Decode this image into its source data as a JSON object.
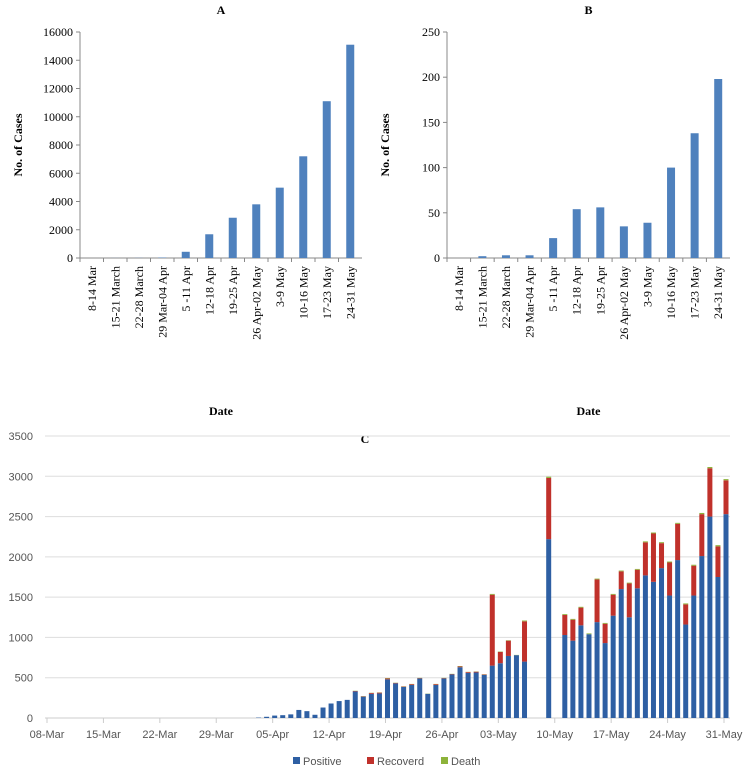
{
  "chart_data": [
    {
      "type": "bar",
      "title": "A",
      "xlabel": "Date",
      "ylabel": "No. of Cases",
      "ylim": [
        0,
        16000
      ],
      "yticks": [
        0,
        2000,
        4000,
        6000,
        8000,
        10000,
        12000,
        14000,
        16000
      ],
      "categories": [
        "8-14 Mar",
        "15-21 March",
        "22-28 March",
        "29 Mar-04 Apr",
        "5 -11 Apr",
        "12-18 Apr",
        "19-25 Apr",
        "26 Apr-02 May",
        "3-9 May",
        "10-16 May",
        "17-23 May",
        "24-31 May"
      ],
      "values": [
        0,
        5,
        10,
        30,
        440,
        1680,
        2850,
        3800,
        4980,
        7200,
        11100,
        15100
      ],
      "color": "#4f81bd"
    },
    {
      "type": "bar",
      "title": "B",
      "xlabel": "Date",
      "ylabel": "No. of Cases",
      "ylim": [
        0,
        250
      ],
      "yticks": [
        0,
        50,
        100,
        150,
        200,
        250
      ],
      "categories": [
        "8-14 Mar",
        "15-21 March",
        "22-28 March",
        "29 Mar-04 Apr",
        "5 -11 Apr",
        "12-18 Apr",
        "19-25 Apr",
        "26 Apr-02 May",
        "3-9 May",
        "10-16 May",
        "17-23 May",
        "24-31 May"
      ],
      "values": [
        0,
        2,
        3,
        3,
        22,
        54,
        56,
        35,
        39,
        100,
        138,
        198
      ],
      "color": "#4f81bd"
    },
    {
      "type": "bar",
      "stacked": true,
      "title": "C",
      "ylim": [
        0,
        3500
      ],
      "yticks": [
        0,
        500,
        1000,
        1500,
        2000,
        2500,
        3000,
        3500
      ],
      "start_date": "08-Mar",
      "xticks": [
        "08-Mar",
        "15-Mar",
        "22-Mar",
        "29-Mar",
        "05-Apr",
        "12-Apr",
        "19-Apr",
        "26-Apr",
        "03-May",
        "10-May",
        "17-May",
        "24-May",
        "31-May"
      ],
      "legend_position": "bottom",
      "series": [
        {
          "name": "Positive",
          "color": "#2e5fa3",
          "values": [
            0,
            0,
            0,
            0,
            0,
            0,
            0,
            0,
            0,
            0,
            0,
            0,
            0,
            0,
            0,
            0,
            0,
            0,
            0,
            0,
            0,
            0,
            0,
            0,
            0,
            0,
            5,
            15,
            30,
            35,
            45,
            100,
            85,
            40,
            130,
            180,
            210,
            225,
            330,
            265,
            300,
            305,
            480,
            430,
            385,
            410,
            490,
            300,
            410,
            490,
            540,
            630,
            560,
            565,
            535,
            650,
            680,
            770,
            780,
            700,
            0,
            0,
            2220,
            0,
            1030,
            960,
            1150,
            1040,
            1190,
            930,
            1270,
            1600,
            1250,
            1610,
            1770,
            1690,
            1860,
            1520,
            1960,
            1160,
            1520,
            2010,
            2500,
            1750,
            2530
          ]
        },
        {
          "name": "Recoverd",
          "color": "#c0312b",
          "values": [
            0,
            0,
            0,
            0,
            0,
            0,
            0,
            0,
            0,
            0,
            0,
            0,
            0,
            0,
            0,
            0,
            0,
            0,
            0,
            0,
            0,
            0,
            0,
            0,
            0,
            0,
            0,
            0,
            0,
            0,
            0,
            0,
            0,
            0,
            0,
            0,
            0,
            0,
            5,
            5,
            10,
            10,
            10,
            5,
            5,
            10,
            5,
            0,
            10,
            5,
            5,
            10,
            10,
            10,
            5,
            880,
            140,
            190,
            0,
            500,
            0,
            0,
            760,
            0,
            250,
            260,
            220,
            0,
            530,
            240,
            260,
            220,
            420,
            230,
            410,
            600,
            310,
            410,
            450,
            250,
            370,
            520,
            600,
            380,
            420
          ]
        },
        {
          "name": "Death",
          "color": "#8db33a",
          "values": [
            0,
            0,
            0,
            0,
            0,
            0,
            0,
            0,
            0,
            0,
            0,
            0,
            0,
            0,
            0,
            0,
            0,
            0,
            0,
            0,
            0,
            0,
            0,
            0,
            0,
            0,
            0,
            0,
            0,
            0,
            0,
            0,
            0,
            0,
            0,
            0,
            0,
            0,
            3,
            3,
            3,
            3,
            5,
            3,
            3,
            3,
            3,
            3,
            3,
            3,
            3,
            5,
            3,
            3,
            3,
            10,
            5,
            5,
            3,
            10,
            0,
            0,
            15,
            0,
            10,
            10,
            10,
            10,
            10,
            10,
            10,
            10,
            10,
            10,
            12,
            12,
            12,
            12,
            12,
            12,
            12,
            15,
            15,
            15,
            15
          ]
        }
      ]
    }
  ]
}
